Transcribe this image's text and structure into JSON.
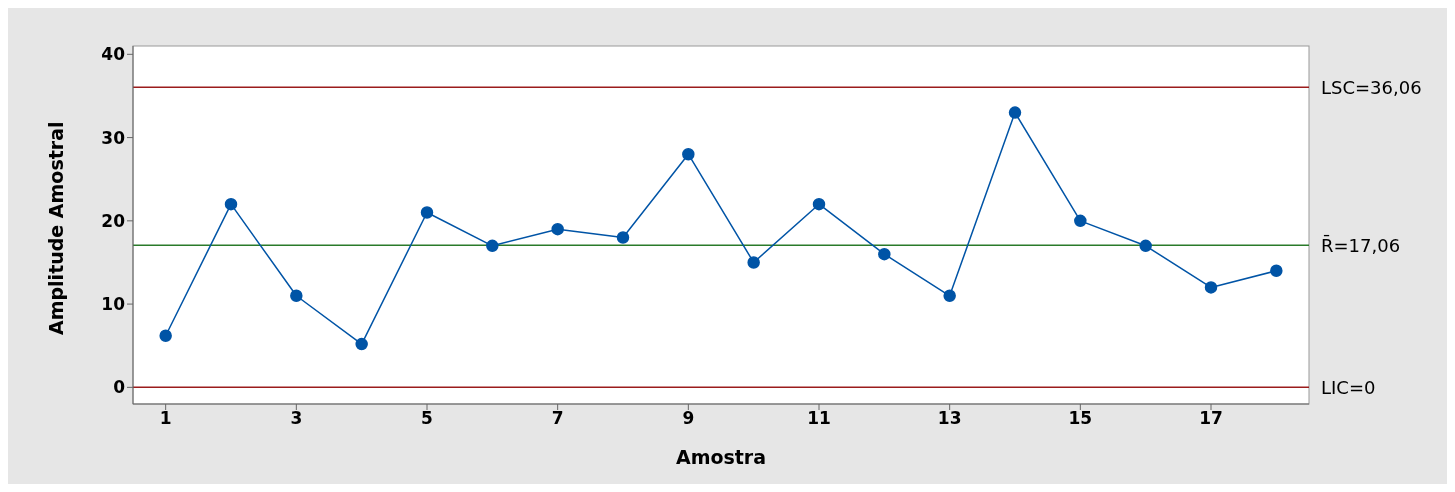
{
  "chart_data": {
    "type": "line",
    "xlabel": "Amostra",
    "ylabel": "Amplitude Amostral",
    "x": [
      1,
      2,
      3,
      4,
      5,
      6,
      7,
      8,
      9,
      10,
      11,
      12,
      13,
      14,
      15,
      16,
      17,
      18
    ],
    "series": [
      {
        "color": "#0054a6",
        "values": [
          6.2,
          22,
          11,
          5.2,
          21,
          17,
          19,
          18,
          28,
          15,
          22,
          16,
          11,
          33,
          20,
          17,
          12,
          14
        ]
      }
    ],
    "xlim": [
      0.5,
      18.5
    ],
    "xticks": [
      1,
      3,
      5,
      7,
      9,
      11,
      13,
      15,
      17
    ],
    "ylim": [
      -2,
      41
    ],
    "yticks": [
      0,
      10,
      20,
      30,
      40
    ],
    "ref_lines": [
      {
        "axis": "y",
        "value": 36.06,
        "label": "LSC=36,06",
        "color": "#9b1c1c"
      },
      {
        "axis": "y",
        "value": 17.06,
        "label": "R̄=17,06",
        "color": "#2a7a2a"
      },
      {
        "axis": "y",
        "value": 0,
        "label": "LIC=0",
        "color": "#9b1c1c"
      }
    ],
    "grid": false,
    "legend": false,
    "marker": "circle",
    "line_style": "solid"
  }
}
